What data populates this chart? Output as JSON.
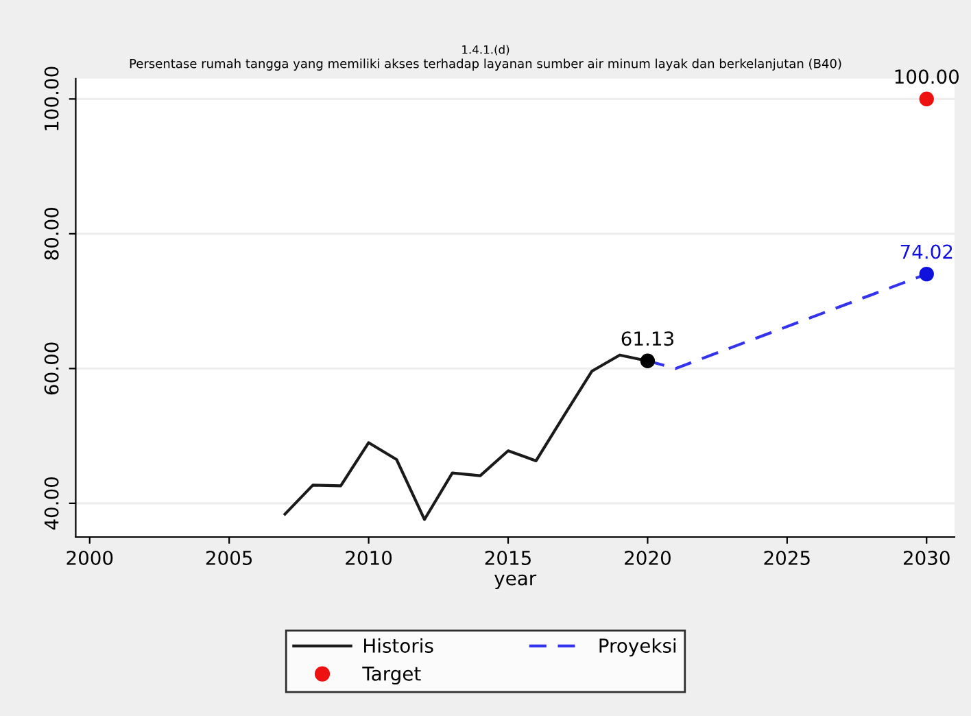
{
  "chart_data": {
    "type": "line",
    "title": "1.4.1.(d)",
    "subtitle": "Persentase rumah tangga yang memiliki akses terhadap layanan sumber air minum layak dan berkelanjutan (B40)",
    "xlabel": "year",
    "series": [
      {
        "name": "Historis",
        "color": "#1a1a1a",
        "line_style": "solid",
        "x": [
          2007,
          2008,
          2009,
          2010,
          2011,
          2012,
          2013,
          2014,
          2015,
          2016,
          2017,
          2018,
          2019,
          2020
        ],
        "values": [
          38.4,
          42.7,
          42.6,
          49.0,
          46.5,
          37.6,
          44.5,
          44.1,
          47.8,
          46.3,
          53.0,
          59.6,
          62.0,
          61.13
        ]
      },
      {
        "name": "Proyeksi",
        "color": "#3333ee",
        "line_style": "dashed",
        "x": [
          2020,
          2021,
          2030
        ],
        "values": [
          61.13,
          60.0,
          74.02
        ]
      },
      {
        "name": "Target",
        "type": "scatter",
        "color": "#ee1111",
        "marker": "circle",
        "x": [
          2030
        ],
        "values": [
          100
        ]
      },
      {
        "type": "scatter",
        "color": "#000000",
        "marker": "circle",
        "x": [
          2020
        ],
        "values": [
          61.13
        ],
        "value_labels": [
          "61.13"
        ]
      },
      {
        "type": "scatter",
        "color": "#1111dd",
        "marker": "circle",
        "x": [
          2030
        ],
        "values": [
          74.02
        ],
        "value_labels": [
          "74.02"
        ]
      }
    ],
    "annotations": [
      {
        "text": "100.00",
        "x": 2030,
        "y": 100
      }
    ],
    "xlim": [
      1999.5,
      2031
    ],
    "ylim": [
      35,
      103
    ],
    "xticks": [
      2000,
      2005,
      2010,
      2015,
      2020,
      2025,
      2030
    ],
    "yticks": [
      {
        "value": 40,
        "label": "40.00"
      },
      {
        "value": 60,
        "label": "60.00"
      },
      {
        "value": 80,
        "label": "80.00"
      },
      {
        "value": 100,
        "label": "100.00"
      }
    ],
    "grid": "y",
    "legend": "bottom"
  }
}
